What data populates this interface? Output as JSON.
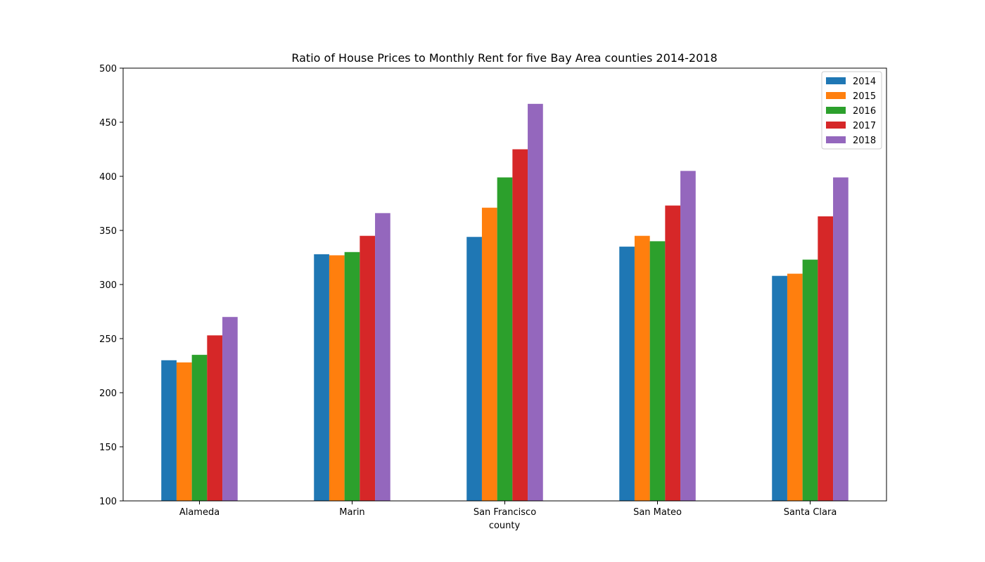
{
  "chart_data": {
    "type": "bar",
    "title": "Ratio of House Prices to Monthly Rent for five Bay Area counties 2014-2018",
    "xlabel": "county",
    "ylabel": "",
    "ylim": [
      100,
      500
    ],
    "yticks": [
      100,
      150,
      200,
      250,
      300,
      350,
      400,
      450,
      500
    ],
    "grid": false,
    "legend_position": "top-right",
    "categories": [
      "Alameda",
      "Marin",
      "San Francisco",
      "San Mateo",
      "Santa Clara"
    ],
    "series": [
      {
        "name": "2014",
        "color": "#1f77b4",
        "values": [
          230,
          328,
          344,
          335,
          308
        ]
      },
      {
        "name": "2015",
        "color": "#ff7f0e",
        "values": [
          228,
          327,
          371,
          345,
          310
        ]
      },
      {
        "name": "2016",
        "color": "#2ca02c",
        "values": [
          235,
          330,
          399,
          340,
          323
        ]
      },
      {
        "name": "2017",
        "color": "#d62728",
        "values": [
          253,
          345,
          425,
          373,
          363
        ]
      },
      {
        "name": "2018",
        "color": "#9467bd",
        "values": [
          270,
          366,
          467,
          405,
          399
        ]
      }
    ]
  }
}
